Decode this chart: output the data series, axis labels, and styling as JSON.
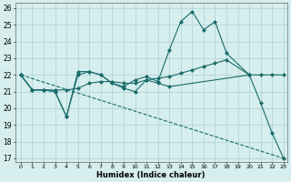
{
  "xlabel": "Humidex (Indice chaleur)",
  "ylabel": "",
  "xlim": [
    -0.5,
    23.3
  ],
  "ylim": [
    16.8,
    26.3
  ],
  "yticks": [
    17,
    18,
    19,
    20,
    21,
    22,
    23,
    24,
    25,
    26
  ],
  "xticks": [
    0,
    1,
    2,
    3,
    4,
    5,
    6,
    7,
    8,
    9,
    10,
    11,
    12,
    13,
    14,
    15,
    16,
    17,
    18,
    19,
    20,
    21,
    22,
    23
  ],
  "bg_color": "#d6eeee",
  "grid_color": "#aad0d0",
  "line_color": "#1a6b6b",
  "series": [
    {
      "x": [
        0,
        23
      ],
      "y": [
        22,
        17
      ],
      "marker": null,
      "markersize": 0,
      "linewidth": 0.8,
      "linestyle": "--"
    },
    {
      "x": [
        0,
        1,
        2,
        3,
        4,
        5,
        6,
        7,
        8,
        9,
        10,
        11,
        12,
        13,
        14,
        15,
        16,
        17,
        18,
        20
      ],
      "y": [
        22,
        21.1,
        21.1,
        21.1,
        21.1,
        21.2,
        21.5,
        21.6,
        21.6,
        21.5,
        21.5,
        21.7,
        21.8,
        21.9,
        22.1,
        22.3,
        22.5,
        22.7,
        22.9,
        22.0
      ],
      "marker": "D",
      "markersize": 2.0,
      "linewidth": 0.8,
      "linestyle": "-"
    },
    {
      "x": [
        0,
        1,
        2,
        3,
        4,
        5,
        6,
        7,
        8,
        9,
        10,
        11,
        12,
        13,
        20,
        21,
        22,
        23
      ],
      "y": [
        22,
        21.1,
        21.1,
        21.0,
        19.5,
        22.2,
        22.2,
        22.0,
        21.5,
        21.2,
        21.0,
        21.7,
        21.5,
        21.3,
        22.0,
        22.0,
        22.0,
        22.0
      ],
      "marker": "D",
      "markersize": 2.0,
      "linewidth": 0.8,
      "linestyle": "-"
    },
    {
      "x": [
        0,
        1,
        2,
        3,
        4,
        5,
        6,
        7,
        8,
        9,
        10,
        11,
        12,
        13,
        14,
        15,
        16,
        17,
        18,
        20,
        21,
        22,
        23
      ],
      "y": [
        22,
        21.1,
        21.1,
        21.0,
        19.5,
        22.0,
        22.2,
        22.0,
        21.5,
        21.3,
        21.7,
        21.9,
        21.6,
        23.5,
        25.2,
        25.8,
        24.7,
        25.2,
        23.3,
        22.0,
        20.3,
        18.5,
        17.0
      ],
      "marker": "D",
      "markersize": 2.0,
      "linewidth": 0.8,
      "linestyle": "-"
    }
  ]
}
